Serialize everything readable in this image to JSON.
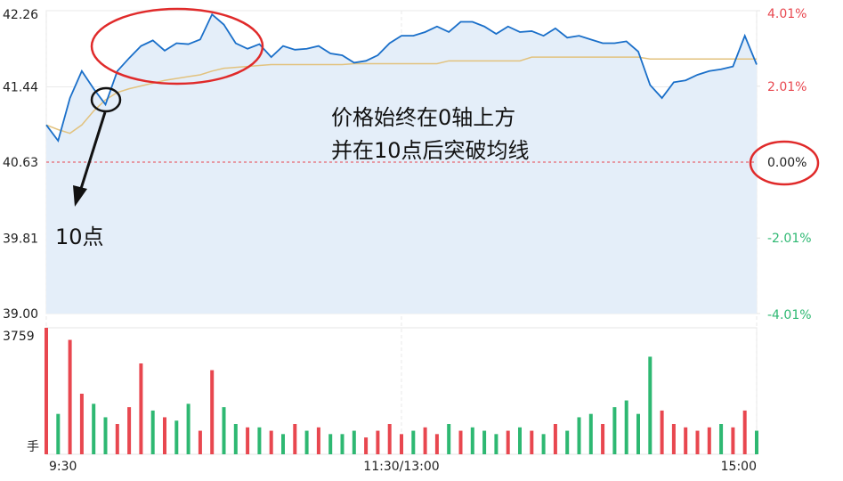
{
  "chart_data": [
    {
      "type": "line",
      "x": [
        0,
        4,
        8,
        12,
        16,
        20,
        24,
        28,
        32,
        36,
        40,
        44,
        48,
        52,
        56,
        60,
        64,
        68,
        72,
        76,
        80,
        84,
        88,
        92,
        96,
        100,
        104,
        108,
        112,
        116,
        120,
        124,
        128,
        132,
        136,
        140,
        144,
        148,
        152,
        156,
        160,
        164,
        168,
        172,
        176,
        180,
        184,
        188,
        192,
        196,
        200,
        204,
        208,
        212,
        216,
        220,
        224,
        228,
        232,
        236,
        240
      ],
      "xlim": [
        0,
        240
      ],
      "xticks": [
        {
          "value": 0,
          "label": "9:30"
        },
        {
          "value": 120,
          "label": "11:30/13:00"
        },
        {
          "value": 240,
          "label": "15:00"
        }
      ],
      "ylim": [
        39.0,
        42.26
      ],
      "yticks": [
        {
          "value": 42.26,
          "label": "42.26"
        },
        {
          "value": 41.44,
          "label": "41.44"
        },
        {
          "value": 40.63,
          "label": "40.63"
        },
        {
          "value": 39.81,
          "label": "39.81"
        },
        {
          "value": 39.0,
          "label": "39.00"
        }
      ],
      "y2lim": [
        -4.01,
        4.01
      ],
      "y2ticks": [
        {
          "value": 4.01,
          "label": "4.01%"
        },
        {
          "value": 2.01,
          "label": "2.01%"
        },
        {
          "value": 0,
          "label": "0.00%"
        },
        {
          "value": -2.01,
          "label": "-2.01%"
        },
        {
          "value": -4.01,
          "label": "-4.01%"
        }
      ],
      "series": [
        {
          "color": "#1a6fc9",
          "values": [
            41.03,
            40.86,
            41.32,
            41.61,
            41.42,
            41.25,
            41.61,
            41.75,
            41.88,
            41.94,
            41.83,
            41.91,
            41.9,
            41.95,
            42.22,
            42.11,
            41.91,
            41.85,
            41.9,
            41.76,
            41.88,
            41.84,
            41.85,
            41.88,
            41.8,
            41.78,
            41.7,
            41.72,
            41.78,
            41.91,
            41.99,
            41.99,
            42.03,
            42.09,
            42.03,
            42.14,
            42.14,
            42.09,
            42.01,
            42.09,
            42.03,
            42.04,
            41.99,
            42.07,
            41.97,
            41.99,
            41.95,
            41.91,
            41.91,
            41.93,
            41.82,
            41.46,
            41.32,
            41.49,
            41.51,
            41.57,
            41.61,
            41.63,
            41.66,
            41.99,
            41.68
          ]
        },
        {
          "color": "#e2c27e",
          "values": [
            41.03,
            40.98,
            40.94,
            41.03,
            41.18,
            41.3,
            41.38,
            41.42,
            41.45,
            41.48,
            41.51,
            41.53,
            41.55,
            41.57,
            41.61,
            41.64,
            41.65,
            41.66,
            41.67,
            41.68,
            41.68,
            41.68,
            41.68,
            41.68,
            41.68,
            41.68,
            41.69,
            41.69,
            41.69,
            41.69,
            41.69,
            41.69,
            41.69,
            41.69,
            41.72,
            41.72,
            41.72,
            41.72,
            41.72,
            41.72,
            41.72,
            41.76,
            41.76,
            41.76,
            41.76,
            41.76,
            41.76,
            41.76,
            41.76,
            41.76,
            41.76,
            41.74,
            41.74,
            41.74,
            41.74,
            41.74,
            41.74,
            41.74,
            41.74,
            41.74,
            41.74
          ]
        }
      ],
      "annotations": [
        "价格始终在0轴上方",
        "并在10点后突破均线",
        "10点"
      ]
    },
    {
      "type": "bar",
      "x": [
        0,
        4,
        8,
        12,
        16,
        20,
        24,
        28,
        32,
        36,
        40,
        44,
        48,
        52,
        56,
        60,
        64,
        68,
        72,
        76,
        80,
        84,
        88,
        92,
        96,
        100,
        104,
        108,
        112,
        116,
        120,
        124,
        128,
        132,
        136,
        140,
        144,
        148,
        152,
        156,
        160,
        164,
        168,
        172,
        176,
        180,
        184,
        188,
        192,
        196,
        200,
        204,
        208,
        212,
        216,
        220,
        224,
        228,
        232,
        236,
        240
      ],
      "xlim": [
        0,
        240
      ],
      "ylim": [
        0,
        3759
      ],
      "yticks": [
        3759
      ],
      "unit": "手",
      "values": [
        3759,
        1200,
        3400,
        1800,
        1500,
        1100,
        900,
        1400,
        2700,
        1300,
        1100,
        1000,
        1500,
        700,
        2500,
        1400,
        900,
        800,
        800,
        700,
        600,
        900,
        700,
        800,
        600,
        600,
        700,
        500,
        700,
        900,
        600,
        700,
        800,
        600,
        900,
        700,
        800,
        700,
        600,
        700,
        800,
        700,
        600,
        900,
        700,
        1100,
        1200,
        900,
        1400,
        1600,
        1200,
        2900,
        1300,
        900,
        800,
        700,
        800,
        900,
        800,
        1300,
        700
      ],
      "colors": [
        "#e8474f",
        "#2eb872",
        "#e8474f",
        "#e8474f",
        "#2eb872",
        "#2eb872",
        "#e8474f",
        "#e8474f",
        "#e8474f",
        "#2eb872",
        "#e8474f",
        "#2eb872",
        "#2eb872",
        "#e8474f",
        "#e8474f",
        "#2eb872",
        "#2eb872",
        "#e8474f",
        "#2eb872",
        "#e8474f",
        "#2eb872",
        "#e8474f",
        "#2eb872",
        "#e8474f",
        "#2eb872",
        "#2eb872",
        "#2eb872",
        "#e8474f",
        "#e8474f",
        "#e8474f",
        "#e8474f",
        "#2eb872",
        "#e8474f",
        "#e8474f",
        "#2eb872",
        "#e8474f",
        "#2eb872",
        "#2eb872",
        "#2eb872",
        "#e8474f",
        "#2eb872",
        "#e8474f",
        "#2eb872",
        "#e8474f",
        "#2eb872",
        "#2eb872",
        "#2eb872",
        "#e8474f",
        "#2eb872",
        "#2eb872",
        "#2eb872",
        "#2eb872",
        "#e8474f",
        "#e8474f",
        "#e8474f",
        "#e8474f",
        "#e8474f",
        "#2eb872",
        "#e8474f",
        "#e8474f",
        "#2eb872"
      ]
    }
  ]
}
